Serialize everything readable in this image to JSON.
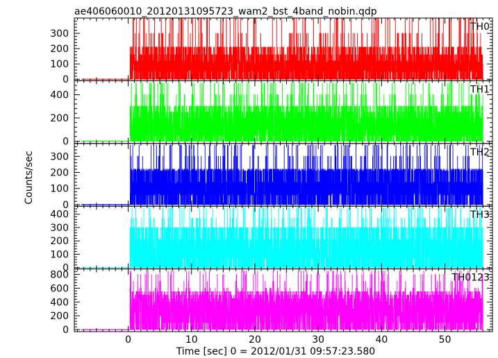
{
  "chart_data": {
    "type": "line",
    "title": "ae406060010_20120131095723_wam2_bst_4band_nobin.qdp",
    "xlabel": "Time [sec] 0 = 2012/01/31 09:57:23.580",
    "ylabel": "Counts/sec",
    "xlim": [
      -8.5,
      57.5
    ],
    "x_ticks": [
      0,
      10,
      20,
      30,
      40,
      50
    ],
    "x_tick_labels": [
      "0",
      "10",
      "20",
      "30",
      "40",
      "50"
    ],
    "grid": false,
    "legend": "none",
    "data_start": 0.3,
    "data_end": 56.0,
    "panels": [
      {
        "name": "TH0",
        "color": "#ff0000",
        "ylim": [
          -10,
          400
        ],
        "yticks": [
          0,
          100,
          200,
          300
        ],
        "ytick_labels": [
          "0",
          "100",
          "200",
          "300"
        ],
        "pre_trigger_level": 0,
        "levels": [
          0,
          50,
          60,
          100,
          110,
          120,
          160,
          210,
          300,
          400
        ],
        "typical_max": 210
      },
      {
        "name": "TH1",
        "color": "#00ff00",
        "ylim": [
          -20,
          520
        ],
        "yticks": [
          0,
          200,
          400
        ],
        "ytick_labels": [
          "0",
          "200",
          "400"
        ],
        "pre_trigger_level": 0,
        "levels": [
          0,
          50,
          100,
          150,
          200,
          250,
          300,
          400,
          500
        ],
        "typical_max": 300
      },
      {
        "name": "TH2",
        "color": "#0000ff",
        "ylim": [
          -10,
          380
        ],
        "yticks": [
          0,
          100,
          200,
          300
        ],
        "ytick_labels": [
          "0",
          "100",
          "200",
          "300"
        ],
        "pre_trigger_level": 0,
        "levels": [
          0,
          60,
          70,
          130,
          140,
          210,
          220,
          300,
          370
        ],
        "typical_max": 220
      },
      {
        "name": "TH3",
        "color": "#00ffff",
        "ylim": [
          -10,
          460
        ],
        "yticks": [
          0,
          100,
          200,
          300,
          400
        ],
        "ytick_labels": [
          "0",
          "100",
          "200",
          "300",
          "400"
        ],
        "pre_trigger_level": 0,
        "levels": [
          0,
          70,
          140,
          210,
          300,
          370,
          450
        ],
        "typical_max": 300
      },
      {
        "name": "TH0123",
        "color": "#ff00ff",
        "ylim": [
          -30,
          880
        ],
        "yticks": [
          0,
          200,
          400,
          600,
          800
        ],
        "ytick_labels": [
          "0",
          "200",
          "400",
          "600",
          "800"
        ],
        "pre_trigger_level": 0,
        "levels": [
          0,
          100,
          200,
          250,
          300,
          350,
          400,
          450,
          500,
          550,
          600,
          700,
          800,
          850
        ],
        "typical_max": 550
      }
    ]
  }
}
